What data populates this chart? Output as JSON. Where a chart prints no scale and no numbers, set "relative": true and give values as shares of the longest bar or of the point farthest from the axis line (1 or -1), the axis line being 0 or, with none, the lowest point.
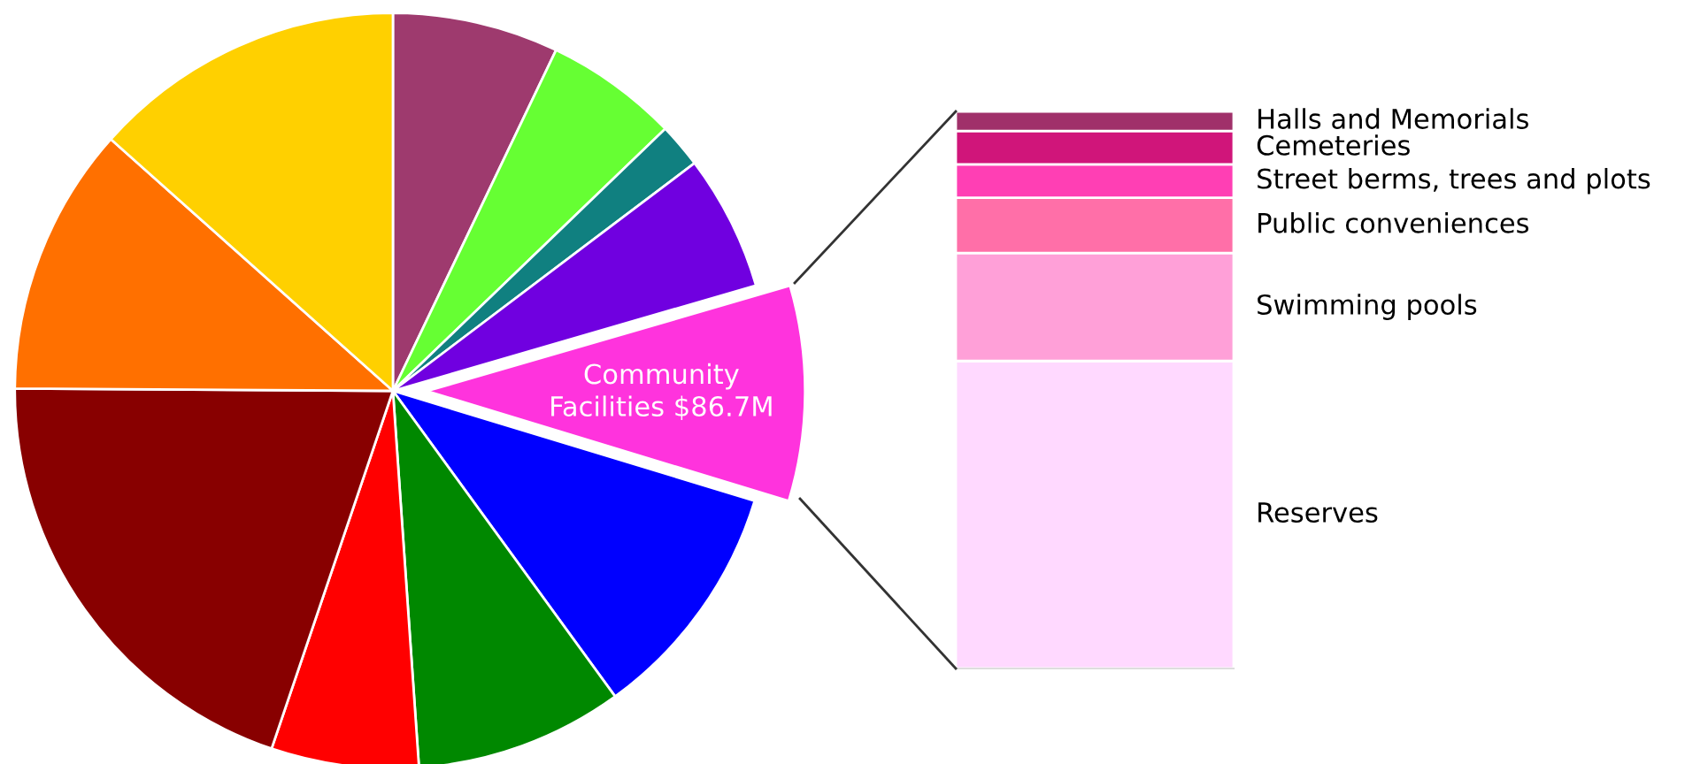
{
  "chart_data": [
    {
      "type": "pie",
      "categories": [
        null,
        null,
        null,
        null,
        null,
        null,
        null,
        null,
        null,
        null,
        null
      ],
      "values": [
        7.1,
        5.7,
        1.9,
        5.8,
        9.2,
        10.3,
        8.9,
        6.3,
        19.9,
        11.5,
        13.4
      ],
      "colors": [
        "#9e3a6e",
        "#66ff33",
        "#108080",
        "#7000e0",
        "#ff33dd",
        "#0000ff",
        "#008800",
        "#ff0000",
        "#880000",
        "#ff7000",
        "#ffd000"
      ],
      "value_labels": [
        null,
        null,
        null,
        null,
        "Community\nFacilities $86.7M",
        null,
        null,
        null,
        null,
        null,
        null
      ]
    },
    {
      "type": "bar",
      "stacked": true,
      "relative": true,
      "categories": [
        null
      ],
      "series": [
        {
          "name": "Reserves",
          "color": "#ffd9ff",
          "values": [
            0.552
          ]
        },
        {
          "name": "Swimming pools",
          "color": "#ffa0d8",
          "values": [
            0.194
          ]
        },
        {
          "name": "Public conveniences",
          "color": "#ff6fa8",
          "values": [
            0.099
          ]
        },
        {
          "name": "Street berms, trees and plots",
          "color": "#ff3fb4",
          "values": [
            0.06
          ]
        },
        {
          "name": "Cemeteries",
          "color": "#d0157a",
          "values": [
            0.06
          ]
        },
        {
          "name": "Halls and Memorials",
          "color": "#a0306a",
          "values": [
            0.035
          ]
        }
      ]
    }
  ]
}
